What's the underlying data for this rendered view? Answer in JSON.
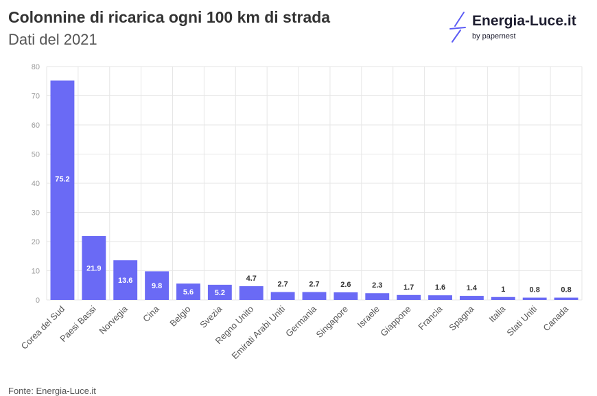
{
  "header": {
    "title": "Colonnine di ricarica ogni 100 km di strada",
    "subtitle": "Dati del 2021"
  },
  "logo": {
    "name": "Energia-Luce.it",
    "byline": "by papernest",
    "color": "#5b5bf5"
  },
  "footer": {
    "source": "Fonte: Energia-Luce.it"
  },
  "colors": {
    "bar": "#6a6af5",
    "grid": "#e6e6e6",
    "tick": "#999999",
    "label_inside": "#ffffff",
    "label_outside": "#333333"
  },
  "chart_data": {
    "type": "bar",
    "title": "Colonnine di ricarica ogni 100 km di strada",
    "subtitle": "Dati del 2021",
    "xlabel": "",
    "ylabel": "",
    "ylim": [
      0,
      80
    ],
    "yticks": [
      0,
      10,
      20,
      30,
      40,
      50,
      60,
      70,
      80
    ],
    "grid": true,
    "legend": "none",
    "categories": [
      "Corea del Sud",
      "Paesi Bassi",
      "Norvegia",
      "Cina",
      "Belgio",
      "Svezia",
      "Regno Unito",
      "Emirati Arabi Uniti",
      "Germania",
      "Singapore",
      "Israele",
      "Giappone",
      "Francia",
      "Spagna",
      "Italia",
      "Stati Uniti",
      "Canada"
    ],
    "values": [
      75.2,
      21.9,
      13.6,
      9.8,
      5.6,
      5.2,
      4.7,
      2.7,
      2.7,
      2.6,
      2.3,
      1.7,
      1.6,
      1.4,
      1,
      0.8,
      0.8
    ],
    "value_labels": [
      "75.2",
      "21.9",
      "13.6",
      "9.8",
      "5.6",
      "5.2",
      "4.7",
      "2.7",
      "2.7",
      "2.6",
      "2.3",
      "1.7",
      "1.6",
      "1.4",
      "1",
      "0.8",
      "0.8"
    ]
  }
}
